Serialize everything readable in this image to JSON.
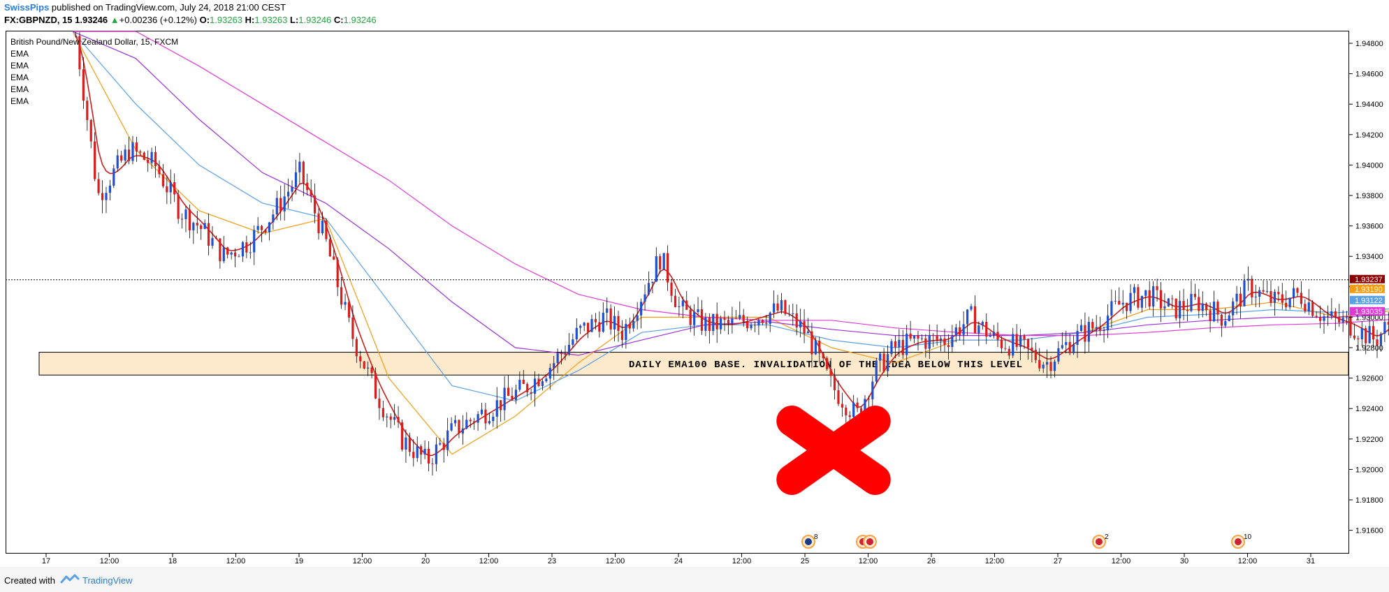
{
  "header": {
    "author": "SwissPips",
    "published": " published on TradingView.com, July 24, 2018 21:00 CEST",
    "symbol": "FX:GBPNZD, 15",
    "last": "1.93246",
    "change_arrow": "▲",
    "change": "+0.00236 (+0.12%)",
    "o_label": "O:",
    "o_value": "1.93263",
    "h_label": "H:",
    "h_value": "1.93263",
    "l_label": "L:",
    "l_value": "1.93246",
    "c_label": "C:",
    "c_value": "1.93246"
  },
  "legend": {
    "instrument": "British Pound/New Zealand Dollar, 15, FXCM",
    "indicators": [
      "EMA",
      "EMA",
      "EMA",
      "EMA",
      "EMA"
    ]
  },
  "annotation": {
    "zone_text": "DAILY EMA100 BASE. INVALIDATION OF THE IDEA BELOW THIS LEVEL",
    "zone_fill": "#fde9cb"
  },
  "colors": {
    "bull": "#1f4fd1",
    "bear": "#d91d1d",
    "ema_fast": "#c81e1e",
    "ema_orange": "#f39c12",
    "ema_blue": "#5aa0e6",
    "ema_purple": "#9b30d9",
    "ema_magenta": "#e03ad6",
    "cross": "#ff0000",
    "price_line": "#000000"
  },
  "price_labels": [
    {
      "value": "1.93237",
      "color": "#8b0000"
    },
    {
      "value": "1.93190",
      "color": "#f39c12"
    },
    {
      "value": "1.93122",
      "color": "#5aa0e6"
    },
    {
      "value": "1.93035",
      "color": "#e03ad6"
    }
  ],
  "events": [
    {
      "count": "8",
      "icon": "nz-flag-icon"
    },
    {
      "count": "",
      "icon": "uk-flag-icon"
    },
    {
      "count": "2",
      "icon": "uk-flag-icon"
    },
    {
      "count": "10",
      "icon": "uk-flag-icon"
    }
  ],
  "footer": {
    "created_with": "Created with",
    "brand": "TradingView"
  },
  "chart_data": {
    "type": "candlestick",
    "symbol": "GBPNZD",
    "timeframe": "15",
    "ylim": [
      1.9145,
      1.9495
    ],
    "y_ticks": [
      "1.94800",
      "1.94600",
      "1.94400",
      "1.94200",
      "1.94000",
      "1.93800",
      "1.93600",
      "1.93400",
      "1.93200",
      "1.93000",
      "1.92800",
      "1.92600",
      "1.92400",
      "1.92200",
      "1.92000",
      "1.91800",
      "1.91600"
    ],
    "y_tick_values": [
      1.948,
      1.946,
      1.944,
      1.942,
      1.94,
      1.938,
      1.936,
      1.934,
      1.932,
      1.93,
      1.928,
      1.926,
      1.924,
      1.922,
      1.92,
      1.918,
      1.916
    ],
    "x_ticks": [
      "17",
      "12:00",
      "18",
      "12:00",
      "19",
      "12:00",
      "20",
      "12:00",
      "23",
      "12:00",
      "24",
      "12:00",
      "25",
      "12:00",
      "26",
      "12:00",
      "27",
      "12:00",
      "30",
      "12:00",
      "31"
    ],
    "last_price": 1.93246,
    "zone": {
      "low": 1.9262,
      "high": 1.9277
    },
    "price_path": [
      [
        0.0,
        1.95
      ],
      [
        0.4,
        1.938
      ],
      [
        0.9,
        1.941
      ],
      [
        1.3,
        1.94
      ],
      [
        1.7,
        1.937
      ],
      [
        2.0,
        1.936
      ],
      [
        2.4,
        1.934
      ],
      [
        2.8,
        1.935
      ],
      [
        3.2,
        1.937
      ],
      [
        3.6,
        1.9395
      ],
      [
        4.0,
        1.935
      ],
      [
        4.4,
        1.929
      ],
      [
        4.8,
        1.925
      ],
      [
        5.2,
        1.922
      ],
      [
        5.6,
        1.9205
      ],
      [
        6.0,
        1.9225
      ],
      [
        6.4,
        1.9235
      ],
      [
        6.8,
        1.9245
      ],
      [
        7.2,
        1.9255
      ],
      [
        7.6,
        1.927
      ],
      [
        8.0,
        1.929
      ],
      [
        8.4,
        1.93
      ],
      [
        8.7,
        1.929
      ],
      [
        9.0,
        1.9315
      ],
      [
        9.3,
        1.934
      ],
      [
        9.6,
        1.9305
      ],
      [
        10.0,
        1.9295
      ],
      [
        10.4,
        1.9295
      ],
      [
        10.8,
        1.93
      ],
      [
        11.2,
        1.9305
      ],
      [
        11.6,
        1.929
      ],
      [
        12.0,
        1.9255
      ],
      [
        12.4,
        1.9235
      ],
      [
        12.7,
        1.9265
      ],
      [
        13.0,
        1.928
      ],
      [
        13.4,
        1.9285
      ],
      [
        13.8,
        1.9285
      ],
      [
        14.2,
        1.93
      ],
      [
        14.6,
        1.9285
      ],
      [
        15.0,
        1.928
      ],
      [
        15.4,
        1.927
      ],
      [
        15.8,
        1.9285
      ],
      [
        16.2,
        1.9295
      ],
      [
        16.6,
        1.931
      ],
      [
        17.0,
        1.9315
      ],
      [
        17.4,
        1.9305
      ],
      [
        17.8,
        1.931
      ],
      [
        18.2,
        1.93
      ],
      [
        18.6,
        1.932
      ],
      [
        19.0,
        1.931
      ],
      [
        19.4,
        1.9315
      ],
      [
        19.8,
        1.93
      ],
      [
        20.2,
        1.9295
      ],
      [
        20.6,
        1.9285
      ],
      [
        20.9,
        1.93
      ],
      [
        21.2,
        1.934
      ],
      [
        21.45,
        1.93246
      ]
    ],
    "ema_series": [
      {
        "color_key": "ema_orange",
        "path": [
          [
            0.0,
            1.95
          ],
          [
            1.0,
            1.941
          ],
          [
            2.0,
            1.937
          ],
          [
            3.0,
            1.9355
          ],
          [
            4.0,
            1.9365
          ],
          [
            5.0,
            1.926
          ],
          [
            6.0,
            1.921
          ],
          [
            7.0,
            1.9235
          ],
          [
            8.0,
            1.927
          ],
          [
            9.0,
            1.93
          ],
          [
            10.0,
            1.93
          ],
          [
            11.0,
            1.93
          ],
          [
            12.0,
            1.928
          ],
          [
            13.0,
            1.927
          ],
          [
            14.0,
            1.9285
          ],
          [
            15.0,
            1.9285
          ],
          [
            16.0,
            1.929
          ],
          [
            17.0,
            1.9305
          ],
          [
            18.0,
            1.9305
          ],
          [
            19.0,
            1.931
          ],
          [
            20.0,
            1.93
          ],
          [
            21.0,
            1.9305
          ],
          [
            21.45,
            1.9319
          ]
        ]
      },
      {
        "color_key": "ema_blue",
        "path": [
          [
            0.0,
            1.949
          ],
          [
            1.0,
            1.944
          ],
          [
            2.0,
            1.94
          ],
          [
            3.0,
            1.9375
          ],
          [
            4.0,
            1.9365
          ],
          [
            5.0,
            1.931
          ],
          [
            6.0,
            1.9255
          ],
          [
            7.0,
            1.9245
          ],
          [
            8.0,
            1.9265
          ],
          [
            9.0,
            1.929
          ],
          [
            10.0,
            1.9295
          ],
          [
            11.0,
            1.9295
          ],
          [
            12.0,
            1.9285
          ],
          [
            13.0,
            1.928
          ],
          [
            14.0,
            1.9285
          ],
          [
            15.0,
            1.9285
          ],
          [
            16.0,
            1.929
          ],
          [
            17.0,
            1.93
          ],
          [
            18.0,
            1.9302
          ],
          [
            19.0,
            1.9305
          ],
          [
            20.0,
            1.9303
          ],
          [
            21.0,
            1.9306
          ],
          [
            21.45,
            1.93122
          ]
        ]
      },
      {
        "color_key": "ema_purple",
        "path": [
          [
            0.0,
            1.95
          ],
          [
            1.0,
            1.947
          ],
          [
            2.0,
            1.943
          ],
          [
            3.0,
            1.9395
          ],
          [
            4.0,
            1.9375
          ],
          [
            5.0,
            1.9345
          ],
          [
            6.0,
            1.931
          ],
          [
            7.0,
            1.928
          ],
          [
            8.0,
            1.9275
          ],
          [
            9.0,
            1.9285
          ],
          [
            10.0,
            1.9295
          ],
          [
            11.0,
            1.9297
          ],
          [
            12.0,
            1.9292
          ],
          [
            13.0,
            1.9288
          ],
          [
            14.0,
            1.9288
          ],
          [
            15.0,
            1.9288
          ],
          [
            16.0,
            1.929
          ],
          [
            17.0,
            1.9295
          ],
          [
            18.0,
            1.9298
          ],
          [
            19.0,
            1.93
          ],
          [
            20.0,
            1.93
          ],
          [
            21.0,
            1.9302
          ],
          [
            21.45,
            1.9305
          ]
        ]
      },
      {
        "color_key": "ema_magenta",
        "path": [
          [
            0.0,
            1.951
          ],
          [
            1.0,
            1.949
          ],
          [
            2.0,
            1.9465
          ],
          [
            3.0,
            1.944
          ],
          [
            4.0,
            1.9415
          ],
          [
            5.0,
            1.939
          ],
          [
            6.0,
            1.936
          ],
          [
            7.0,
            1.9335
          ],
          [
            8.0,
            1.9315
          ],
          [
            9.0,
            1.9305
          ],
          [
            10.0,
            1.93
          ],
          [
            11.0,
            1.9298
          ],
          [
            12.0,
            1.9298
          ],
          [
            13.0,
            1.9293
          ],
          [
            14.0,
            1.929
          ],
          [
            15.0,
            1.9288
          ],
          [
            16.0,
            1.9288
          ],
          [
            17.0,
            1.929
          ],
          [
            18.0,
            1.9293
          ],
          [
            19.0,
            1.9295
          ],
          [
            20.0,
            1.9296
          ],
          [
            21.0,
            1.9299
          ],
          [
            21.45,
            1.93035
          ]
        ]
      }
    ]
  }
}
